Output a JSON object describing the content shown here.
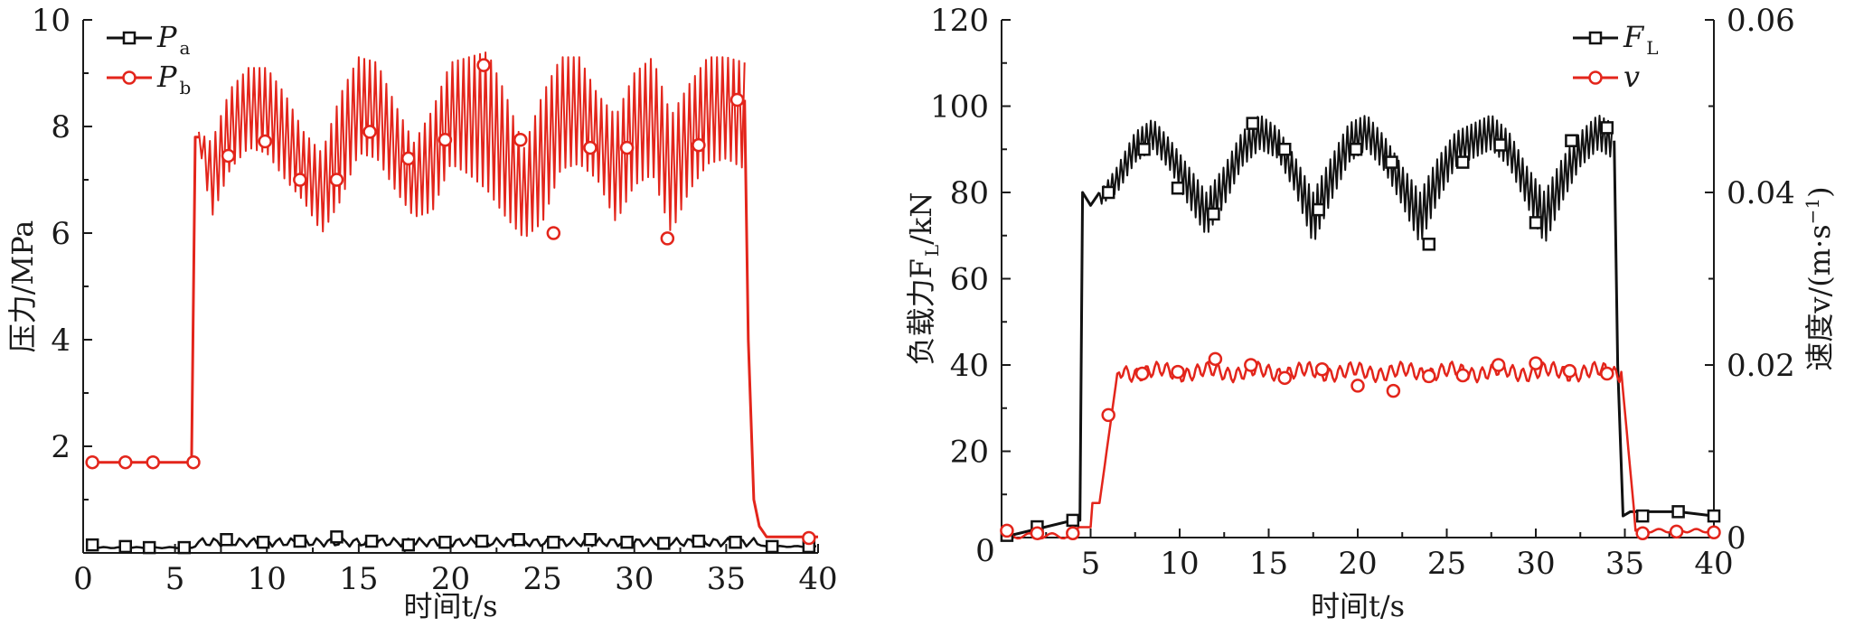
{
  "chart_data": [
    {
      "type": "line",
      "xlabel": "时间t/s",
      "ylabel": "压力/MPa",
      "xlim": [
        0,
        40
      ],
      "ylim": [
        0,
        10
      ],
      "xticks": [
        0,
        5,
        10,
        15,
        20,
        25,
        30,
        35,
        40
      ],
      "yticks": [
        2,
        4,
        6,
        8,
        10
      ],
      "grid": false,
      "legend_position": "top-left",
      "series": [
        {
          "name": "Pa",
          "legend_main": "P",
          "legend_sub": "a",
          "color": "#111111",
          "marker": "square",
          "x": [
            0.5,
            3,
            5,
            6,
            8,
            10,
            12,
            14,
            16,
            18,
            20,
            22,
            24,
            26,
            28,
            30,
            32,
            34,
            36,
            37,
            40
          ],
          "y": [
            0.12,
            0.1,
            0.12,
            0.15,
            0.22,
            0.18,
            0.25,
            0.18,
            0.22,
            0.2,
            0.18,
            0.22,
            0.2,
            0.25,
            0.2,
            0.22,
            0.2,
            0.22,
            0.2,
            0.12,
            0.12
          ],
          "markers_x": [
            0.5,
            2.3,
            3.6,
            5.5,
            7.8,
            9.8,
            11.8,
            13.8,
            15.7,
            17.7,
            19.7,
            21.7,
            23.7,
            25.6,
            27.6,
            29.6,
            31.6,
            33.5,
            35.5,
            37.5,
            39.5
          ],
          "markers_y": [
            0.15,
            0.12,
            0.1,
            0.1,
            0.25,
            0.2,
            0.22,
            0.3,
            0.22,
            0.15,
            0.2,
            0.22,
            0.25,
            0.2,
            0.25,
            0.2,
            0.18,
            0.22,
            0.2,
            0.12,
            0.12
          ]
        },
        {
          "name": "Pb",
          "legend_main": "P",
          "legend_sub": "b",
          "color": "#e3251b",
          "marker": "circle",
          "x": [
            0.5,
            5.9,
            6.2,
            6.7,
            7.5,
            9.5,
            10.5,
            12.5,
            13.1,
            13.8,
            16.2,
            19.3,
            22.2,
            25.5,
            28.5,
            31.2,
            31.9,
            33.5,
            35,
            36,
            36.3,
            36.7,
            37,
            40
          ],
          "y": [
            1.7,
            1.7,
            7.6,
            7.0,
            7.7,
            8.4,
            8.2,
            6.8,
            6.3,
            6.8,
            8.5,
            6.7,
            8.6,
            6.1,
            8.5,
            6.4,
            6.2,
            8.2,
            8.4,
            8.2,
            3.0,
            0.5,
            0.3,
            0.3
          ],
          "envelope_x": [
            6.3,
            7,
            8,
            9,
            10,
            11,
            12,
            13,
            14,
            15,
            16,
            17,
            18,
            19,
            20,
            21,
            22,
            23,
            24,
            25,
            26,
            27,
            28,
            29,
            30,
            31,
            32,
            33,
            34,
            35,
            36
          ],
          "envelope_upper": [
            7.9,
            7.7,
            8.7,
            9.1,
            9.1,
            8.6,
            7.9,
            7.5,
            8.6,
            9.3,
            9.2,
            8.4,
            7.7,
            8.3,
            9.2,
            9.3,
            9.4,
            8.6,
            7.6,
            8.6,
            9.3,
            9.3,
            8.6,
            8.2,
            9.0,
            9.3,
            8.2,
            8.8,
            9.3,
            9.3,
            9.2
          ],
          "envelope_lower": [
            7.7,
            6.3,
            7.2,
            7.6,
            7.5,
            7.0,
            6.6,
            6.0,
            6.6,
            7.5,
            7.4,
            6.8,
            6.3,
            6.4,
            7.3,
            7.1,
            6.8,
            6.3,
            5.9,
            6.2,
            7.2,
            7.3,
            7.0,
            6.2,
            6.9,
            7.1,
            6.0,
            6.8,
            7.3,
            7.4,
            7.2
          ],
          "markers_x": [
            0.5,
            2.3,
            3.8,
            6.0,
            7.9,
            9.9,
            11.8,
            13.8,
            15.6,
            17.7,
            19.7,
            21.8,
            23.8,
            25.6,
            27.6,
            29.6,
            31.8,
            33.5,
            35.6,
            39.5
          ],
          "markers_y": [
            1.7,
            1.7,
            1.7,
            1.7,
            7.45,
            7.72,
            7.0,
            7.0,
            7.9,
            7.4,
            7.75,
            9.15,
            7.75,
            6.0,
            7.6,
            7.6,
            5.9,
            7.65,
            8.5,
            0.28
          ]
        }
      ]
    },
    {
      "type": "line",
      "xlabel": "时间t/s",
      "ylabel": "负载力F_L/kN",
      "ylabel_main": "负载力F",
      "ylabel_sub": "L",
      "ylabel_tail": "/kN",
      "y2label": "速度v/(m·s⁻¹)",
      "y2label_main": "速度v/(m·s",
      "y2label_sup": "−1",
      "y2label_tail": ")",
      "xlim": [
        0,
        40
      ],
      "ylim": [
        0,
        120
      ],
      "y2lim": [
        0,
        0.06
      ],
      "xticks": [
        5,
        10,
        15,
        20,
        25,
        30,
        35,
        40
      ],
      "x_origin_label": "0",
      "yticks": [
        20,
        40,
        60,
        80,
        100,
        120
      ],
      "y2ticks": [
        "0",
        "0.02",
        "0.04",
        "0.06"
      ],
      "y2tick_values": [
        0,
        0.02,
        0.04,
        0.06
      ],
      "grid": false,
      "legend_position": "top-right",
      "series": [
        {
          "name": "FL",
          "legend_main": "F",
          "legend_sub": "L",
          "color": "#111111",
          "marker": "square",
          "axis": "left",
          "x": [
            0,
            2,
            4,
            4.4,
            4.6,
            5.0,
            5.4,
            8,
            10,
            11.2,
            12.5,
            14.5,
            16.5,
            17.7,
            19.5,
            21.5,
            24,
            26,
            28,
            30,
            32,
            34.5,
            34.7,
            35,
            36,
            38,
            40
          ],
          "y": [
            0,
            2,
            4,
            4,
            80,
            77,
            78,
            93,
            82,
            72,
            78,
            95,
            82,
            70,
            88,
            92,
            70,
            88,
            93,
            72,
            88,
            93,
            10,
            5,
            6,
            6,
            5
          ],
          "envelope_x": [
            5.5,
            6.5,
            7.5,
            8.5,
            9.5,
            10.5,
            11.5,
            12.5,
            13.5,
            14.5,
            15.5,
            16.5,
            17.5,
            18.5,
            19.5,
            20.5,
            21.5,
            22.5,
            23.5,
            24.5,
            25.5,
            26.5,
            27.5,
            28.5,
            29.5,
            30.5,
            31.5,
            32.5,
            33.5,
            34.3
          ],
          "envelope_upper": [
            80,
            86,
            94,
            97,
            92,
            86,
            80,
            86,
            94,
            98,
            95,
            88,
            80,
            88,
            96,
            98,
            93,
            86,
            80,
            88,
            94,
            96,
            98,
            94,
            86,
            80,
            88,
            94,
            98,
            96
          ],
          "envelope_lower": [
            77,
            80,
            87,
            90,
            85,
            77,
            70,
            77,
            86,
            90,
            88,
            80,
            68,
            78,
            87,
            90,
            85,
            77,
            68,
            78,
            86,
            88,
            90,
            86,
            77,
            68,
            78,
            86,
            90,
            88
          ],
          "markers_x": [
            0.3,
            2.0,
            4.0,
            6.0,
            8.0,
            9.9,
            11.9,
            14.1,
            15.9,
            17.8,
            19.9,
            21.9,
            24.0,
            25.9,
            28.0,
            30.0,
            32.0,
            34.0,
            36.0,
            38.0,
            40.0
          ],
          "markers_y": [
            0.5,
            2.5,
            4.0,
            80,
            90,
            81,
            75,
            96,
            90,
            76,
            90,
            87,
            68,
            87,
            91,
            73,
            92,
            95,
            5,
            6,
            5
          ]
        },
        {
          "name": "v",
          "legend_main": "v",
          "legend_sub": "",
          "color": "#e3251b",
          "marker": "circle",
          "axis": "right",
          "x": [
            0,
            4,
            4.5,
            5,
            5.5,
            6.0,
            6.5,
            7,
            8,
            10,
            12,
            14,
            16,
            18,
            20,
            22,
            24,
            26,
            28,
            30,
            32,
            34.5,
            35,
            35.5,
            36,
            38,
            40
          ],
          "y": [
            0,
            0,
            0.001,
            0.002,
            0.005,
            0.013,
            0.018,
            0.02,
            0.019,
            0.019,
            0.02,
            0.019,
            0.019,
            0.019,
            0.018,
            0.018,
            0.019,
            0.019,
            0.019,
            0.019,
            0.019,
            0.019,
            0.012,
            0.003,
            0.001,
            0.001,
            0.001
          ],
          "markers_x": [
            0.3,
            2.0,
            4.0,
            6.0,
            7.9,
            9.9,
            12.0,
            14.0,
            15.9,
            18.0,
            20.0,
            22.0,
            24.0,
            25.9,
            27.9,
            30.0,
            31.9,
            34.0,
            36.0,
            37.9,
            40.0
          ],
          "markers_y": [
            0.0008,
            0.0005,
            0.0005,
            0.0142,
            0.019,
            0.0192,
            0.0207,
            0.02,
            0.0185,
            0.0195,
            0.0176,
            0.017,
            0.0187,
            0.0188,
            0.02,
            0.0202,
            0.0193,
            0.019,
            0.0005,
            0.0007,
            0.0006
          ]
        }
      ]
    }
  ]
}
